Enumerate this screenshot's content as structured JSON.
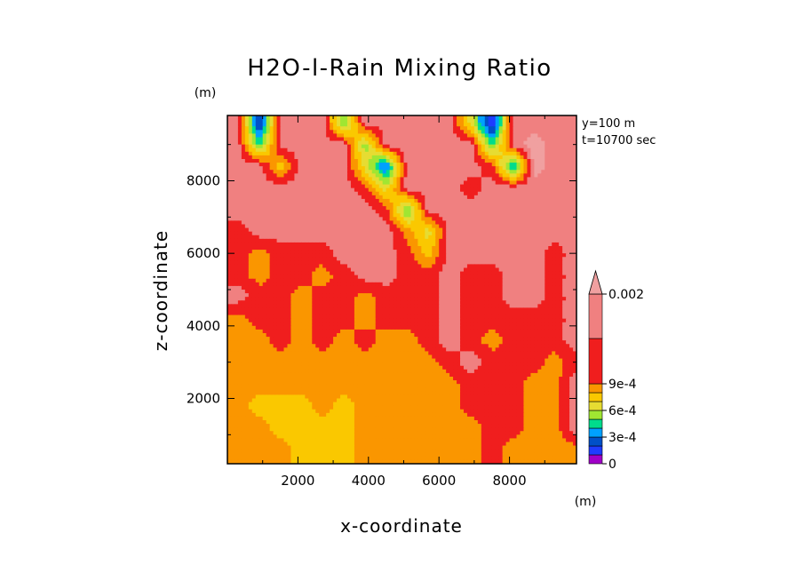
{
  "chart_data": {
    "type": "heatmap",
    "title": "H2O-l-Rain Mixing Ratio",
    "xlabel": "x-coordinate",
    "ylabel": "z-coordinate",
    "x_unit": "(m)",
    "y_unit": "(m)",
    "info_lines": [
      "y=100  m",
      "t=10700 sec"
    ],
    "xlim": [
      0,
      9900
    ],
    "ylim": [
      200,
      9800
    ],
    "x_ticks": [
      2000,
      4000,
      6000,
      8000
    ],
    "y_ticks": [
      2000,
      4000,
      6000,
      8000
    ],
    "x_tick_labels": [
      "2000",
      "4000",
      "6000",
      "8000"
    ],
    "y_tick_labels": [
      "2000",
      "4000",
      "6000",
      "8000"
    ],
    "colorbar": {
      "levels": [
        0,
        0.0001,
        0.0002,
        0.0003,
        0.0004,
        0.0005,
        0.0006,
        0.0007,
        0.0008,
        0.0009,
        0.001,
        0.002
      ],
      "labels": [
        {
          "value": 0.002,
          "text": "0.002"
        },
        {
          "value": 0.0009,
          "text": "9e-4"
        },
        {
          "value": 0.0006,
          "text": "6e-4"
        },
        {
          "value": 0.0003,
          "text": "3e-4"
        },
        {
          "value": 0,
          "text": "0"
        }
      ],
      "colors": [
        "#a000c8",
        "#1e3cff",
        "#0050c8",
        "#00a0ff",
        "#00dc8c",
        "#a0e632",
        "#e6dc32",
        "#fac800",
        "#fa9600",
        "#f01e1e",
        "#f08080",
        "#f0a0a0"
      ]
    },
    "series_description_levels": [
      "0",
      "1e-4",
      "2e-4",
      "3e-4",
      "4e-4",
      "5e-4",
      "6e-4",
      "7e-4",
      "8e-4",
      "9e-4",
      "1e-3",
      "0.002"
    ],
    "field_samples": {
      "note_levels_index": "0=0 ... 11=>0.002",
      "rows_z": [
        9600,
        9000,
        8400,
        7800,
        7200,
        6600,
        6000,
        5400,
        4800,
        4200,
        3600,
        3000,
        2400,
        1800,
        1200,
        600
      ],
      "cols_x": [
        300,
        900,
        1500,
        2100,
        2700,
        3300,
        3900,
        4500,
        5100,
        5700,
        6300,
        6900,
        7500,
        8100,
        8700,
        9300,
        9800
      ],
      "levels": [
        [
          10,
          1,
          10,
          10,
          10,
          4,
          10,
          10,
          10,
          10,
          10,
          6,
          0,
          10,
          10,
          10,
          10
        ],
        [
          10,
          4,
          10,
          10,
          10,
          10,
          5,
          10,
          10,
          10,
          10,
          10,
          4,
          10,
          11,
          10,
          10
        ],
        [
          10,
          10,
          7,
          10,
          10,
          10,
          6,
          2,
          10,
          10,
          10,
          10,
          9,
          3,
          11,
          10,
          10
        ],
        [
          10,
          10,
          10,
          10,
          10,
          10,
          9,
          6,
          10,
          10,
          10,
          9,
          10,
          10,
          10,
          10,
          10
        ],
        [
          10,
          10,
          10,
          10,
          10,
          10,
          10,
          9,
          4,
          10,
          10,
          10,
          10,
          10,
          10,
          10,
          10
        ],
        [
          9,
          10,
          10,
          10,
          10,
          10,
          10,
          10,
          8,
          6,
          10,
          10,
          10,
          10,
          10,
          10,
          10
        ],
        [
          9,
          8,
          9,
          9,
          9,
          10,
          10,
          10,
          9,
          7,
          10,
          10,
          10,
          10,
          10,
          9,
          10
        ],
        [
          9,
          8,
          9,
          9,
          8,
          9,
          10,
          10,
          9,
          9,
          10,
          9,
          9,
          10,
          10,
          9,
          10
        ],
        [
          10,
          9,
          9,
          8,
          9,
          9,
          8,
          9,
          9,
          9,
          10,
          9,
          9,
          10,
          10,
          9,
          10
        ],
        [
          8,
          9,
          9,
          8,
          9,
          9,
          8,
          9,
          9,
          9,
          10,
          9,
          9,
          9,
          9,
          9,
          10
        ],
        [
          8,
          8,
          9,
          8,
          9,
          8,
          9,
          8,
          8,
          9,
          10,
          9,
          8,
          9,
          9,
          9,
          10
        ],
        [
          8,
          8,
          8,
          8,
          8,
          8,
          8,
          8,
          8,
          8,
          9,
          10,
          9,
          9,
          9,
          8,
          9
        ],
        [
          8,
          8,
          8,
          8,
          8,
          8,
          8,
          8,
          8,
          8,
          8,
          9,
          9,
          9,
          8,
          8,
          10
        ],
        [
          8,
          7,
          7,
          7,
          8,
          7,
          8,
          8,
          8,
          8,
          8,
          9,
          9,
          9,
          8,
          8,
          10
        ],
        [
          8,
          8,
          7,
          7,
          7,
          7,
          8,
          8,
          8,
          8,
          8,
          8,
          9,
          9,
          8,
          8,
          10
        ],
        [
          8,
          8,
          8,
          7,
          7,
          7,
          8,
          8,
          8,
          8,
          8,
          8,
          9,
          8,
          8,
          8,
          8
        ]
      ]
    }
  }
}
